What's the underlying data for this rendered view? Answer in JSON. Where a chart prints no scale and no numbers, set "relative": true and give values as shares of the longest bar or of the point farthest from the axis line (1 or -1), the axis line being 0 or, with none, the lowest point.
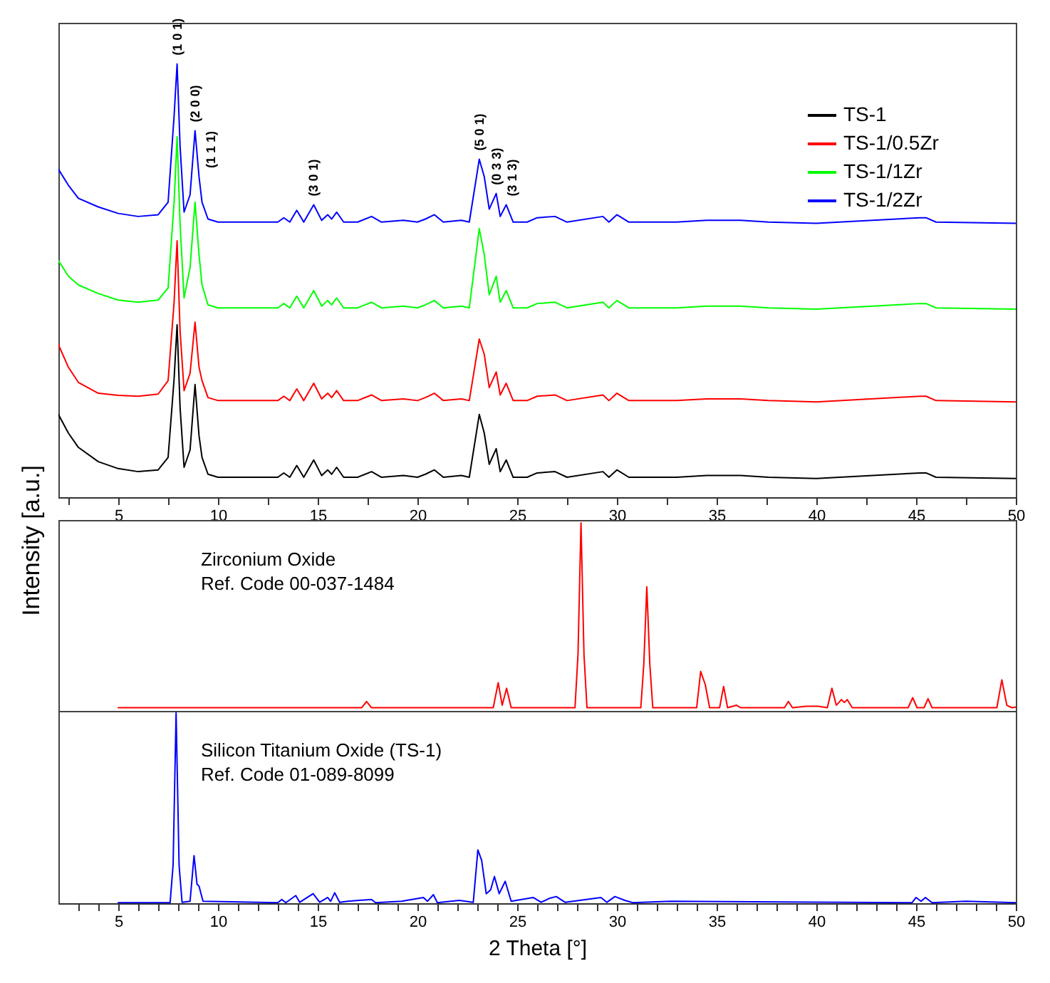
{
  "chart_data": [
    {
      "type": "line",
      "relative": true,
      "ylabel": "Intensity [a.u.]",
      "legend": "top right",
      "tick_labels": "x",
      "xlim": [
        2,
        50
      ],
      "xticks": [
        {
          "value": 2.5,
          "label": null
        },
        5,
        {
          "value": 7.5,
          "label": null
        },
        10,
        {
          "value": 12.5,
          "label": null
        },
        15,
        {
          "value": 17.5,
          "label": null
        },
        20,
        {
          "value": 22.5,
          "label": null
        },
        25,
        {
          "value": 27.5,
          "label": null
        },
        30,
        {
          "value": 32.5,
          "label": null
        },
        35,
        {
          "value": 37.5,
          "label": null
        },
        40,
        {
          "value": 42.5,
          "label": null
        },
        45,
        {
          "value": 47.5,
          "label": null
        },
        50
      ],
      "x": [
        2,
        2.5,
        3,
        4,
        5,
        6,
        7,
        7.5,
        7.8,
        7.95,
        8.1,
        8.3,
        8.6,
        8.85,
        9.05,
        9.2,
        9.5,
        10,
        12,
        13,
        13.3,
        13.6,
        13.95,
        14.3,
        14.8,
        15.2,
        15.5,
        15.7,
        15.95,
        16.3,
        17,
        17.7,
        18.2,
        19.3,
        20,
        20.4,
        20.85,
        21.3,
        22.2,
        22.6,
        23.1,
        23.35,
        23.6,
        23.95,
        24.15,
        24.45,
        24.8,
        25.5,
        26,
        26.9,
        27.5,
        29.3,
        29.6,
        30,
        30.6,
        33,
        34.5,
        36.2,
        37.6,
        40,
        45.2,
        45.5,
        46,
        50
      ],
      "series": [
        {
          "name": "TS-1",
          "color": "#000000",
          "values": [
            0.191,
            0.148,
            0.115,
            0.082,
            0.066,
            0.059,
            0.063,
            0.092,
            0.273,
            0.398,
            0.207,
            0.069,
            0.109,
            0.26,
            0.142,
            0.092,
            0.053,
            0.046,
            0.046,
            0.046,
            0.056,
            0.046,
            0.073,
            0.046,
            0.086,
            0.05,
            0.063,
            0.053,
            0.069,
            0.046,
            0.046,
            0.059,
            0.046,
            0.05,
            0.046,
            0.053,
            0.063,
            0.046,
            0.05,
            0.046,
            0.191,
            0.148,
            0.076,
            0.112,
            0.059,
            0.086,
            0.046,
            0.046,
            0.056,
            0.059,
            0.046,
            0.059,
            0.046,
            0.063,
            0.046,
            0.046,
            0.05,
            0.05,
            0.046,
            0.043,
            0.056,
            0.056,
            0.046,
            0.043
          ]
        },
        {
          "name": "TS-1/0.5Zr",
          "color": "#ff0000",
          "values": [
            0.352,
            0.3,
            0.265,
            0.24,
            0.235,
            0.233,
            0.238,
            0.269,
            0.45,
            0.592,
            0.384,
            0.246,
            0.286,
            0.404,
            0.3,
            0.269,
            0.23,
            0.223,
            0.223,
            0.223,
            0.233,
            0.223,
            0.25,
            0.223,
            0.263,
            0.227,
            0.24,
            0.23,
            0.246,
            0.223,
            0.223,
            0.236,
            0.223,
            0.227,
            0.223,
            0.23,
            0.24,
            0.223,
            0.227,
            0.223,
            0.365,
            0.33,
            0.253,
            0.289,
            0.236,
            0.263,
            0.223,
            0.223,
            0.233,
            0.236,
            0.223,
            0.236,
            0.223,
            0.24,
            0.223,
            0.223,
            0.227,
            0.227,
            0.223,
            0.22,
            0.233,
            0.233,
            0.223,
            0.22
          ]
        },
        {
          "name": "TS-1/1Zr",
          "color": "#00ff00",
          "values": [
            0.546,
            0.51,
            0.49,
            0.47,
            0.455,
            0.45,
            0.455,
            0.483,
            0.68,
            0.832,
            0.63,
            0.46,
            0.53,
            0.681,
            0.56,
            0.49,
            0.444,
            0.437,
            0.437,
            0.437,
            0.447,
            0.437,
            0.464,
            0.437,
            0.477,
            0.441,
            0.454,
            0.444,
            0.46,
            0.437,
            0.437,
            0.45,
            0.437,
            0.441,
            0.437,
            0.444,
            0.454,
            0.437,
            0.441,
            0.437,
            0.62,
            0.56,
            0.467,
            0.51,
            0.45,
            0.477,
            0.437,
            0.437,
            0.447,
            0.45,
            0.437,
            0.45,
            0.437,
            0.454,
            0.437,
            0.437,
            0.441,
            0.441,
            0.437,
            0.434,
            0.447,
            0.447,
            0.437,
            0.434
          ]
        },
        {
          "name": "TS-1/2Zr",
          "color": "#0000ff",
          "values": [
            0.757,
            0.72,
            0.69,
            0.67,
            0.655,
            0.648,
            0.652,
            0.681,
            0.88,
            1.0,
            0.81,
            0.658,
            0.698,
            0.846,
            0.74,
            0.681,
            0.642,
            0.635,
            0.635,
            0.635,
            0.645,
            0.635,
            0.662,
            0.635,
            0.675,
            0.639,
            0.652,
            0.642,
            0.658,
            0.635,
            0.635,
            0.648,
            0.635,
            0.639,
            0.635,
            0.642,
            0.652,
            0.635,
            0.639,
            0.635,
            0.78,
            0.74,
            0.665,
            0.701,
            0.648,
            0.675,
            0.635,
            0.635,
            0.645,
            0.648,
            0.635,
            0.648,
            0.635,
            0.652,
            0.635,
            0.635,
            0.639,
            0.639,
            0.635,
            0.632,
            0.645,
            0.645,
            0.635,
            0.632
          ]
        }
      ],
      "annotations": [
        {
          "text": "(1 0 1)",
          "x": 7.95,
          "y": 1.0
        },
        {
          "text": "(2 0 0)",
          "x": 8.85,
          "y": 0.846
        },
        {
          "text": "(1 1 1)",
          "x": 9.05,
          "y": 0.74
        },
        {
          "text": "(3 0 1)",
          "x": 14.8,
          "y": 0.675
        },
        {
          "text": "(5 0 1)",
          "x": 23.1,
          "y": 0.78
        },
        {
          "text": "(0 3 3)",
          "x": 23.95,
          "y": 0.701
        },
        {
          "text": "(3 1 3)",
          "x": 24.45,
          "y": 0.675
        }
      ]
    },
    {
      "type": "line",
      "relative": true,
      "tick_labels": false,
      "xlim": [
        2,
        50
      ],
      "series": [
        {
          "color": "#ff0000",
          "x": [
            5,
            17.2,
            17.45,
            17.7,
            23.8,
            24.05,
            24.25,
            24.47,
            24.7,
            27.9,
            28.05,
            28.2,
            28.35,
            28.5,
            31.2,
            31.35,
            31.5,
            31.65,
            31.8,
            34.0,
            34.2,
            34.43,
            34.65,
            35.15,
            35.35,
            35.55,
            36.0,
            36.2,
            38.4,
            38.6,
            38.8,
            39.5,
            40.1,
            40.55,
            40.78,
            41.0,
            41.26,
            41.4,
            41.55,
            41.8,
            44.6,
            44.83,
            45.05,
            45.4,
            45.6,
            45.8,
            49.05,
            49.3,
            49.55,
            49.8,
            50
          ],
          "values": [
            0.017,
            0.017,
            0.05,
            0.017,
            0.017,
            0.15,
            0.03,
            0.12,
            0.017,
            0.017,
            0.3,
            1.0,
            0.3,
            0.017,
            0.017,
            0.25,
            0.66,
            0.25,
            0.017,
            0.017,
            0.21,
            0.14,
            0.017,
            0.017,
            0.13,
            0.017,
            0.03,
            0.017,
            0.017,
            0.05,
            0.017,
            0.025,
            0.025,
            0.017,
            0.12,
            0.03,
            0.06,
            0.045,
            0.06,
            0.017,
            0.017,
            0.07,
            0.017,
            0.017,
            0.065,
            0.017,
            0.017,
            0.165,
            0.03,
            0.017,
            0.02
          ]
        }
      ],
      "annotations": [
        "Zirconium Oxide",
        "Ref. Code 00-037-1484"
      ]
    },
    {
      "type": "line",
      "relative": true,
      "tick_labels": "x",
      "xlabel": "2 Theta [°]",
      "xlim": [
        2,
        50
      ],
      "xticks": [
        {
          "value": 3,
          "label": null
        },
        {
          "value": 4,
          "label": null
        },
        5,
        {
          "value": 6,
          "label": null
        },
        {
          "value": 7,
          "label": null
        },
        {
          "value": 8,
          "label": null
        },
        {
          "value": 9,
          "label": null
        },
        10,
        {
          "value": 11,
          "label": null
        },
        {
          "value": 12,
          "label": null
        },
        {
          "value": 13,
          "label": null
        },
        {
          "value": 14,
          "label": null
        },
        15,
        {
          "value": 16,
          "label": null
        },
        {
          "value": 17,
          "label": null
        },
        {
          "value": 18,
          "label": null
        },
        {
          "value": 19,
          "label": null
        },
        20,
        {
          "value": 21,
          "label": null
        },
        {
          "value": 22,
          "label": null
        },
        {
          "value": 23,
          "label": null
        },
        {
          "value": 24,
          "label": null
        },
        25,
        {
          "value": 26,
          "label": null
        },
        {
          "value": 27,
          "label": null
        },
        {
          "value": 28,
          "label": null
        },
        {
          "value": 29,
          "label": null
        },
        30,
        {
          "value": 31,
          "label": null
        },
        {
          "value": 32,
          "label": null
        },
        {
          "value": 33,
          "label": null
        },
        {
          "value": 34,
          "label": null
        },
        35,
        {
          "value": 36,
          "label": null
        },
        {
          "value": 37,
          "label": null
        },
        {
          "value": 38,
          "label": null
        },
        {
          "value": 39,
          "label": null
        },
        40,
        {
          "value": 41,
          "label": null
        },
        {
          "value": 42,
          "label": null
        },
        {
          "value": 43,
          "label": null
        },
        {
          "value": 44,
          "label": null
        },
        45,
        {
          "value": 46,
          "label": null
        },
        {
          "value": 47,
          "label": null
        },
        {
          "value": 48,
          "label": null
        },
        {
          "value": 49,
          "label": null
        },
        50
      ],
      "series": [
        {
          "color": "#0000ff",
          "x": [
            5,
            7.6,
            7.75,
            7.9,
            8.05,
            8.2,
            8.6,
            8.8,
            8.95,
            9.05,
            9.25,
            13.0,
            13.2,
            13.4,
            13.9,
            14.1,
            14.77,
            15.1,
            15.5,
            15.65,
            15.85,
            16.1,
            16.5,
            17.7,
            17.9,
            19.2,
            20.3,
            20.5,
            20.8,
            21.0,
            22.1,
            22.8,
            23.03,
            23.22,
            23.45,
            23.67,
            23.86,
            24.1,
            24.4,
            24.7,
            25.8,
            26.2,
            26.6,
            26.96,
            27.4,
            29.2,
            29.5,
            29.9,
            30.4,
            30.8,
            32.7,
            44.8,
            45.0,
            45.25,
            45.47,
            45.8,
            47.5,
            50
          ],
          "values": [
            0.003,
            0.003,
            0.2,
            1.0,
            0.2,
            0.005,
            0.01,
            0.25,
            0.1,
            0.09,
            0.01,
            0.003,
            0.02,
            0.003,
            0.04,
            0.005,
            0.05,
            0.005,
            0.03,
            0.01,
            0.055,
            0.005,
            0.01,
            0.02,
            0.003,
            0.01,
            0.03,
            0.01,
            0.045,
            0.003,
            0.015,
            0.005,
            0.28,
            0.225,
            0.05,
            0.07,
            0.14,
            0.05,
            0.115,
            0.01,
            0.03,
            0.005,
            0.025,
            0.035,
            0.005,
            0.03,
            0.005,
            0.035,
            0.015,
            0.003,
            0.01,
            0.003,
            0.03,
            0.01,
            0.03,
            0.003,
            0.01,
            0.003
          ]
        }
      ],
      "annotations": [
        "Silicon Titanium Oxide (TS-1)",
        "Ref. Code 01-089-8099"
      ]
    }
  ]
}
